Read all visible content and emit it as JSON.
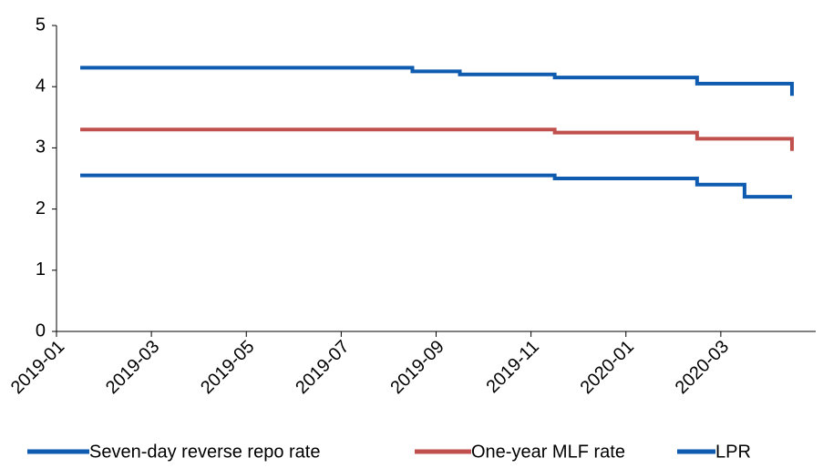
{
  "chart_data": {
    "type": "line",
    "step": true,
    "x": [
      "2019-01",
      "2019-02",
      "2019-03",
      "2019-04",
      "2019-05",
      "2019-06",
      "2019-07",
      "2019-08",
      "2019-09",
      "2019-10",
      "2019-11",
      "2019-12",
      "2020-01",
      "2020-02",
      "2020-03",
      "2020-04"
    ],
    "series": [
      {
        "name": "Seven-day reverse repo rate",
        "color": "#0f5bb0",
        "values": [
          2.55,
          2.55,
          2.55,
          2.55,
          2.55,
          2.55,
          2.55,
          2.55,
          2.55,
          2.55,
          2.5,
          2.5,
          2.5,
          2.4,
          2.2,
          2.2
        ]
      },
      {
        "name": "One-year MLF rate",
        "color": "#c0504d",
        "values": [
          3.3,
          3.3,
          3.3,
          3.3,
          3.3,
          3.3,
          3.3,
          3.3,
          3.3,
          3.3,
          3.25,
          3.25,
          3.25,
          3.15,
          3.15,
          2.95
        ]
      },
      {
        "name": "LPR",
        "color": "#0f5bb0",
        "values": [
          4.31,
          4.31,
          4.31,
          4.31,
          4.31,
          4.31,
          4.31,
          4.25,
          4.2,
          4.2,
          4.15,
          4.15,
          4.15,
          4.05,
          4.05,
          3.85
        ]
      }
    ],
    "xlim": [
      "2019-01",
      "2020-05"
    ],
    "xticks": [
      "2019-01",
      "2019-03",
      "2019-05",
      "2019-07",
      "2019-09",
      "2019-11",
      "2020-01",
      "2020-03"
    ],
    "ylim": [
      0,
      5
    ],
    "yticks": [
      0,
      1,
      2,
      3,
      4,
      5
    ],
    "legend": "bottom"
  }
}
